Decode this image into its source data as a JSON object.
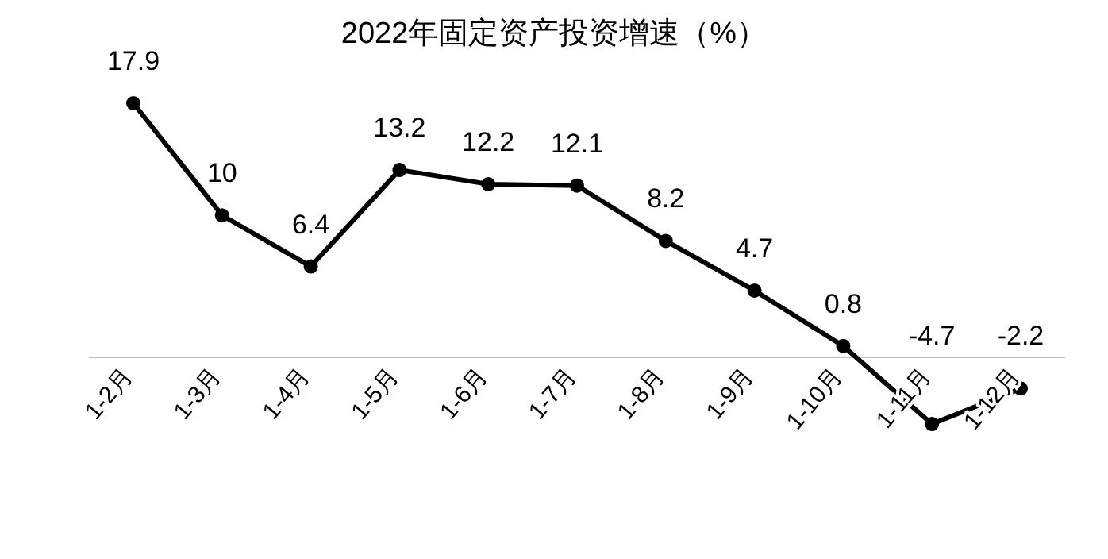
{
  "chart_data": {
    "type": "line",
    "title": "2022年固定资产投资增速（%）",
    "categories": [
      "1-2月",
      "1-3月",
      "1-4月",
      "1-5月",
      "1-6月",
      "1-7月",
      "1-8月",
      "1-9月",
      "1-10月",
      "1-11月",
      "1-12月"
    ],
    "series": [
      {
        "color": "#000000",
        "values": [
          17.9,
          10,
          6.4,
          13.2,
          12.2,
          12.1,
          8.2,
          4.7,
          0.8,
          -4.7,
          -2.2
        ]
      }
    ],
    "data_labels": true,
    "marker": "circle",
    "line_style": "solid"
  }
}
